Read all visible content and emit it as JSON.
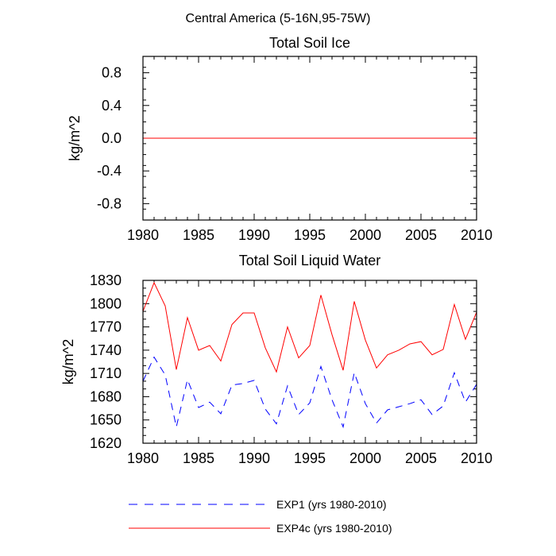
{
  "figure": {
    "title": "Central America (5-16N,95-75W)"
  },
  "series_styles": [
    {
      "name": "EXP1 (yrs 1980-2010)",
      "color": "#0000ff",
      "dash": "dashed"
    },
    {
      "name": "EXP4c (yrs 1980-2010)",
      "color": "#ff0000",
      "dash": "solid"
    }
  ],
  "legend": {
    "placement": "bottom",
    "items": [
      "EXP1 (yrs 1980-2010)",
      "EXP4c (yrs 1980-2010)"
    ]
  },
  "chart_data": [
    {
      "type": "line",
      "title": "Total Soil Ice",
      "xlabel": "",
      "ylabel": "kg/m^2",
      "xlim": [
        1980,
        2010
      ],
      "ylim": [
        -1.0,
        1.0
      ],
      "xticks": [
        1980,
        1985,
        1990,
        1995,
        2000,
        2005,
        2010
      ],
      "yticks": [
        -0.8,
        -0.4,
        0.0,
        0.4,
        0.8
      ],
      "ytick_labels": [
        "-0.8",
        "-0.4",
        "0.0",
        "0.4",
        "0.8"
      ],
      "x": [
        1980,
        1981,
        1982,
        1983,
        1984,
        1985,
        1986,
        1987,
        1988,
        1989,
        1990,
        1991,
        1992,
        1993,
        1994,
        1995,
        1996,
        1997,
        1998,
        1999,
        2000,
        2001,
        2002,
        2003,
        2004,
        2005,
        2006,
        2007,
        2008,
        2009,
        2010
      ],
      "series": [
        {
          "name": "EXP1 (yrs 1980-2010)",
          "values": [
            0,
            0,
            0,
            0,
            0,
            0,
            0,
            0,
            0,
            0,
            0,
            0,
            0,
            0,
            0,
            0,
            0,
            0,
            0,
            0,
            0,
            0,
            0,
            0,
            0,
            0,
            0,
            0,
            0,
            0,
            0
          ]
        },
        {
          "name": "EXP4c (yrs 1980-2010)",
          "values": [
            0,
            0,
            0,
            0,
            0,
            0,
            0,
            0,
            0,
            0,
            0,
            0,
            0,
            0,
            0,
            0,
            0,
            0,
            0,
            0,
            0,
            0,
            0,
            0,
            0,
            0,
            0,
            0,
            0,
            0,
            0
          ]
        }
      ]
    },
    {
      "type": "line",
      "title": "Total Soil Liquid Water",
      "xlabel": "",
      "ylabel": "kg/m^2",
      "xlim": [
        1980,
        2010
      ],
      "ylim": [
        1620,
        1830
      ],
      "xticks": [
        1980,
        1985,
        1990,
        1995,
        2000,
        2005,
        2010
      ],
      "yticks": [
        1620,
        1650,
        1680,
        1710,
        1740,
        1770,
        1800,
        1830
      ],
      "ytick_labels": [
        "1620",
        "1650",
        "1680",
        "1710",
        "1740",
        "1770",
        "1800",
        "1830"
      ],
      "x": [
        1980,
        1981,
        1982,
        1983,
        1984,
        1985,
        1986,
        1987,
        1988,
        1989,
        1990,
        1991,
        1992,
        1993,
        1994,
        1995,
        1996,
        1997,
        1998,
        1999,
        2000,
        2001,
        2002,
        2003,
        2004,
        2005,
        2006,
        2007,
        2008,
        2009,
        2010
      ],
      "series": [
        {
          "name": "EXP1 (yrs 1980-2010)",
          "values": [
            1700,
            1731,
            1708,
            1641,
            1702,
            1666,
            1673,
            1658,
            1695,
            1697,
            1701,
            1664,
            1645,
            1694,
            1657,
            1672,
            1719,
            1676,
            1641,
            1711,
            1671,
            1646,
            1663,
            1667,
            1671,
            1676,
            1657,
            1668,
            1711,
            1673,
            1696
          ]
        },
        {
          "name": "EXP4c (yrs 1980-2010)",
          "values": [
            1790,
            1827,
            1797,
            1715,
            1782,
            1740,
            1746,
            1726,
            1773,
            1788,
            1788,
            1743,
            1712,
            1770,
            1730,
            1746,
            1811,
            1760,
            1714,
            1803,
            1753,
            1717,
            1734,
            1740,
            1748,
            1751,
            1734,
            1741,
            1799,
            1754,
            1789
          ]
        }
      ]
    }
  ]
}
